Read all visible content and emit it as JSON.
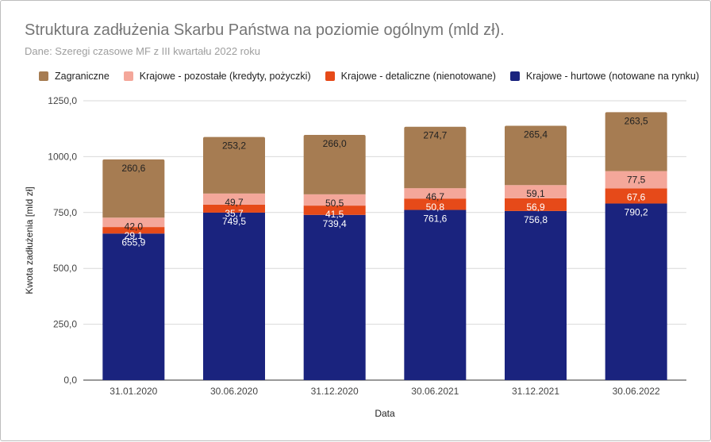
{
  "chart_data": {
    "type": "bar",
    "stacked": true,
    "title": "Struktura zadłużenia Skarbu Państwa na poziomie ogólnym (mld zł).",
    "subtitle": "Dane: Szeregi czasowe MF z III kwartału 2022 roku",
    "xlabel": "Data",
    "ylabel": "Kwota zadłużenia [mld zł]",
    "ylim": [
      0,
      1250
    ],
    "yticks": [
      0,
      250,
      500,
      750,
      1000,
      1250
    ],
    "ytick_labels": [
      "0,0",
      "250,0",
      "500,0",
      "750,0",
      "1000,0",
      "1250,0"
    ],
    "grid": true,
    "legend_position": "top",
    "categories": [
      "31.01.2020",
      "30.06.2020",
      "31.12.2020",
      "30.06.2021",
      "31.12.2021",
      "30.06.2022"
    ],
    "series": [
      {
        "name": "Krajowe - hurtowe (notowane na rynku)",
        "color": "#1a237e",
        "label_color": "#ffffff",
        "values": [
          655.9,
          749.5,
          739.4,
          761.6,
          756.8,
          790.2
        ],
        "labels": [
          "655,9",
          "749,5",
          "739,4",
          "761,6",
          "756,8",
          "790,2"
        ]
      },
      {
        "name": "Krajowe - detaliczne (nienotowane)",
        "color": "#e64a19",
        "label_color": "#ffffff",
        "values": [
          29.1,
          35.7,
          41.5,
          50.8,
          56.9,
          67.6
        ],
        "labels": [
          "29,1",
          "35,7",
          "41,5",
          "50,8",
          "56,9",
          "67,6"
        ]
      },
      {
        "name": "Krajowe - pozostałe (kredyty, pożyczki)",
        "color": "#f4a79a",
        "label_color": "#222222",
        "values": [
          42.0,
          49.7,
          50.5,
          46.7,
          59.1,
          77.5
        ],
        "labels": [
          "42,0",
          "49,7",
          "50,5",
          "46,7",
          "59,1",
          "77,5"
        ]
      },
      {
        "name": "Zagraniczne",
        "color": "#a67c52",
        "label_color": "#222222",
        "values": [
          260.6,
          253.2,
          266.0,
          274.7,
          265.4,
          263.5
        ],
        "labels": [
          "260,6",
          "253,2",
          "266,0",
          "274,7",
          "265,4",
          "263,5"
        ]
      }
    ],
    "legend_order": [
      3,
      2,
      1,
      0
    ]
  }
}
